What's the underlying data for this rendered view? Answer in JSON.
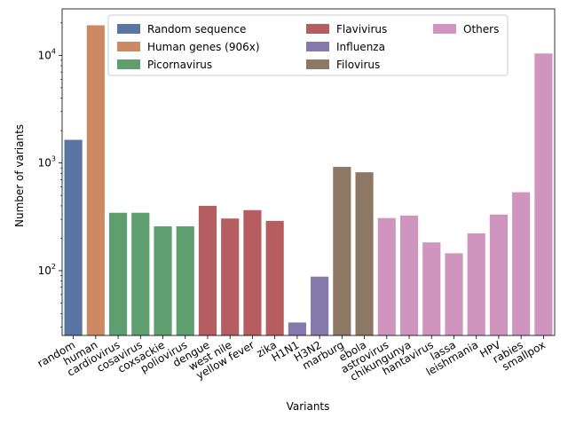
{
  "chart_data": {
    "type": "bar",
    "xlabel": "Variants",
    "ylabel": "Number of variants",
    "yscale": "log",
    "ylim": [
      25,
      27000
    ],
    "yticks": [
      {
        "value": 100,
        "label": "10",
        "exp": "2"
      },
      {
        "value": 1000,
        "label": "10",
        "exp": "3"
      },
      {
        "value": 10000,
        "label": "10",
        "exp": "4"
      }
    ],
    "categories": [
      "random",
      "human",
      "cardiovirus",
      "cosavirus",
      "coxsackie",
      "poliovirus",
      "dengue",
      "west nile",
      "yellow fever",
      "zika",
      "H1N1",
      "H3N2",
      "marburg",
      "ebola",
      "astrovirus",
      "chikungunya",
      "hantavirus",
      "lassa",
      "leishmania",
      "HPV",
      "rabies",
      "smallpox"
    ],
    "values": [
      1640,
      19000,
      345,
      345,
      258,
      258,
      400,
      305,
      365,
      290,
      33,
      88,
      920,
      820,
      308,
      325,
      183,
      145,
      222,
      332,
      535,
      10400
    ],
    "groups": [
      0,
      1,
      2,
      2,
      2,
      2,
      3,
      3,
      3,
      3,
      4,
      4,
      5,
      5,
      6,
      6,
      6,
      6,
      6,
      6,
      6,
      6
    ],
    "series": [
      {
        "name": "Random sequence",
        "color": "#5975a4"
      },
      {
        "name": "Human genes (906x)",
        "color": "#cc8963"
      },
      {
        "name": "Picornavirus",
        "color": "#5f9e6e"
      },
      {
        "name": "Flavivirus",
        "color": "#b55d60"
      },
      {
        "name": "Influenza",
        "color": "#857aab"
      },
      {
        "name": "Filovirus",
        "color": "#8d7866"
      },
      {
        "name": "Others",
        "color": "#d095bf"
      }
    ],
    "legend": "top",
    "grid": false
  }
}
